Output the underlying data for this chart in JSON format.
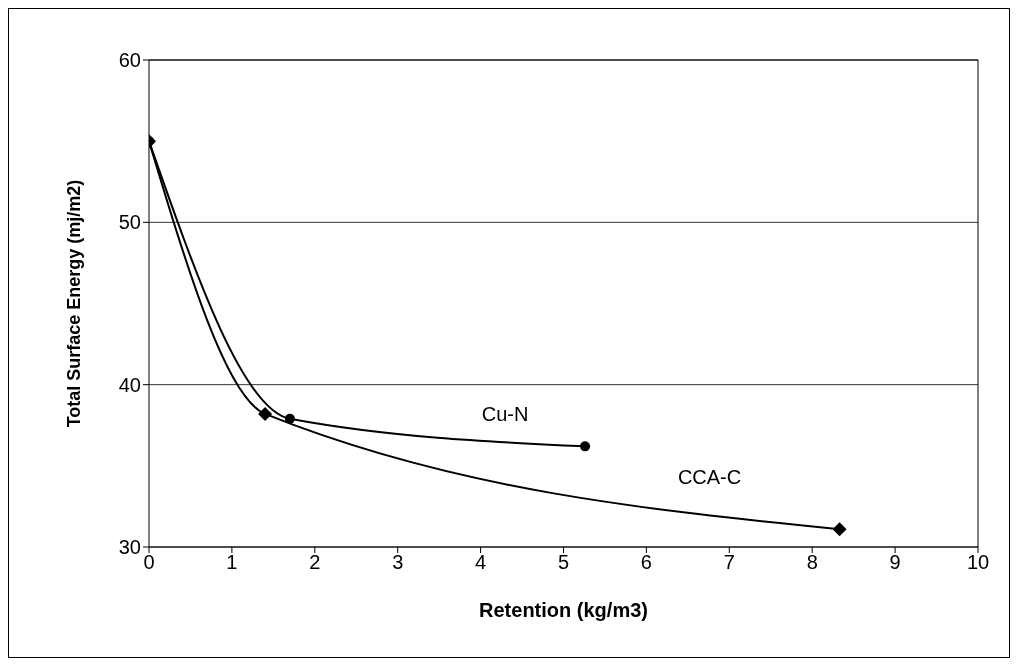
{
  "chart_data": {
    "type": "line",
    "xlabel": "Retention (kg/m3)",
    "ylabel": "Total Surface Energy (mj/m2)",
    "xlim": [
      0,
      10
    ],
    "xticks": [
      0,
      1,
      2,
      3,
      4,
      5,
      6,
      7,
      8,
      9,
      10
    ],
    "ylim": [
      30,
      60
    ],
    "yticks": [
      30,
      40,
      50,
      60
    ],
    "grid": "y",
    "line_style": "solid",
    "series": [
      {
        "name": "Cu-N",
        "color": "#000000",
        "marker": "circle",
        "x": [
          0,
          1.7,
          5.26
        ],
        "values": [
          55,
          37.9,
          36.2
        ]
      },
      {
        "name": "CCA-C",
        "color": "#000000",
        "marker": "diamond",
        "x": [
          0,
          1.4,
          8.33
        ],
        "values": [
          55,
          38.2,
          31.1
        ]
      }
    ]
  }
}
